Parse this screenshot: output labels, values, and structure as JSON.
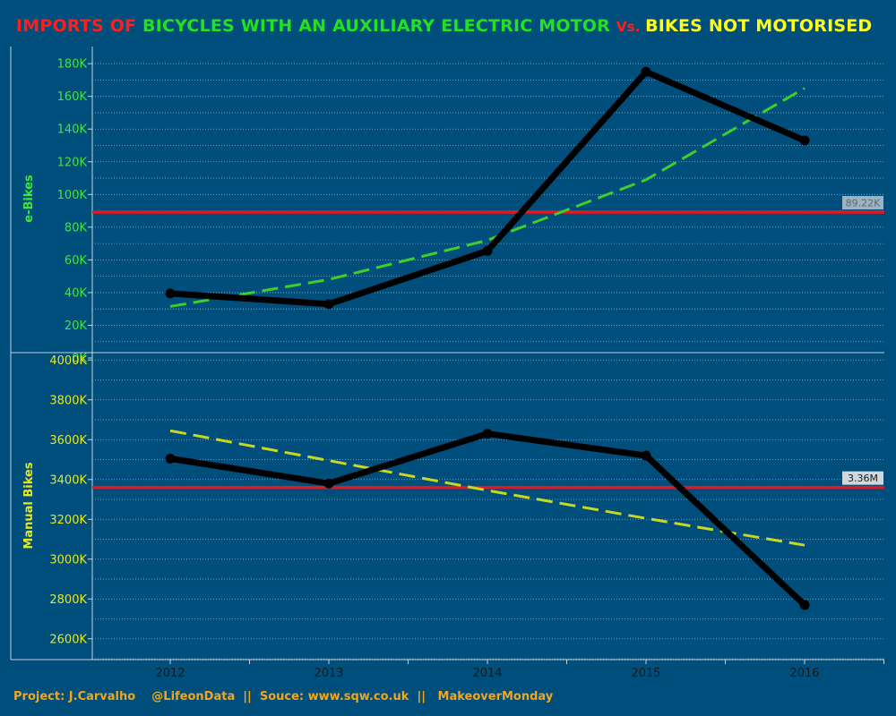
{
  "title": {
    "part1": "IMPORTS OF ",
    "part2": "BICYCLES WITH AN AUXILIARY ELECTRIC MOTOR ",
    "part3": "Vs. ",
    "part4": "BIKES NOT MOTORISED"
  },
  "footer": "Project: J.Carvalho    @LifeonData  ||  Souce: www.sqw.co.uk  ||   MakeoverMonday",
  "colors": {
    "background": "#004e7b",
    "line": "#000000",
    "reference": "#e8141e",
    "ebikes_trend": "#3ecf2a",
    "manual_trend": "#c8d820",
    "ebikes_text": "#3ee63e",
    "manual_text": "#e8e81c"
  },
  "chart_data": [
    {
      "type": "line",
      "panel": "top",
      "ylabel": "e-Bikes",
      "categories": [
        "2012",
        "2013",
        "2014",
        "2015",
        "2016"
      ],
      "series": [
        {
          "values": [
            39500,
            33000,
            65500,
            175000,
            133000
          ]
        }
      ],
      "trend": {
        "style": "dashed",
        "values": [
          31500,
          48000,
          72000,
          109000,
          165000
        ]
      },
      "reference_line": {
        "value": 89220,
        "label": "89.22K"
      },
      "ylim": [
        0,
        185000
      ],
      "yticks": [
        {
          "v": 0,
          "label": "0K"
        },
        {
          "v": 20000,
          "label": "20K"
        },
        {
          "v": 40000,
          "label": "40K"
        },
        {
          "v": 60000,
          "label": "60K"
        },
        {
          "v": 80000,
          "label": "80K"
        },
        {
          "v": 100000,
          "label": "100K"
        },
        {
          "v": 120000,
          "label": "120K"
        },
        {
          "v": 140000,
          "label": "140K"
        },
        {
          "v": 160000,
          "label": "160K"
        },
        {
          "v": 180000,
          "label": "180K"
        }
      ],
      "grid": true
    },
    {
      "type": "line",
      "panel": "bottom",
      "ylabel": "Manual Bikes",
      "categories": [
        "2012",
        "2013",
        "2014",
        "2015",
        "2016"
      ],
      "series": [
        {
          "values": [
            3505000,
            3380000,
            3630000,
            3520000,
            2770000
          ]
        }
      ],
      "trend": {
        "style": "dashed",
        "values": [
          3645000,
          3495000,
          3345000,
          3205000,
          3070000
        ]
      },
      "reference_line": {
        "value": 3360000,
        "label": "3.36M"
      },
      "ylim": [
        2500000,
        4100000
      ],
      "yticks": [
        {
          "v": 2600000,
          "label": "2600K"
        },
        {
          "v": 2800000,
          "label": "2800K"
        },
        {
          "v": 3000000,
          "label": "3000K"
        },
        {
          "v": 3200000,
          "label": "3200K"
        },
        {
          "v": 3400000,
          "label": "3400K"
        },
        {
          "v": 3600000,
          "label": "3600K"
        },
        {
          "v": 3800000,
          "label": "3800K"
        },
        {
          "v": 4000000,
          "label": "4000K"
        }
      ],
      "grid": true
    }
  ]
}
